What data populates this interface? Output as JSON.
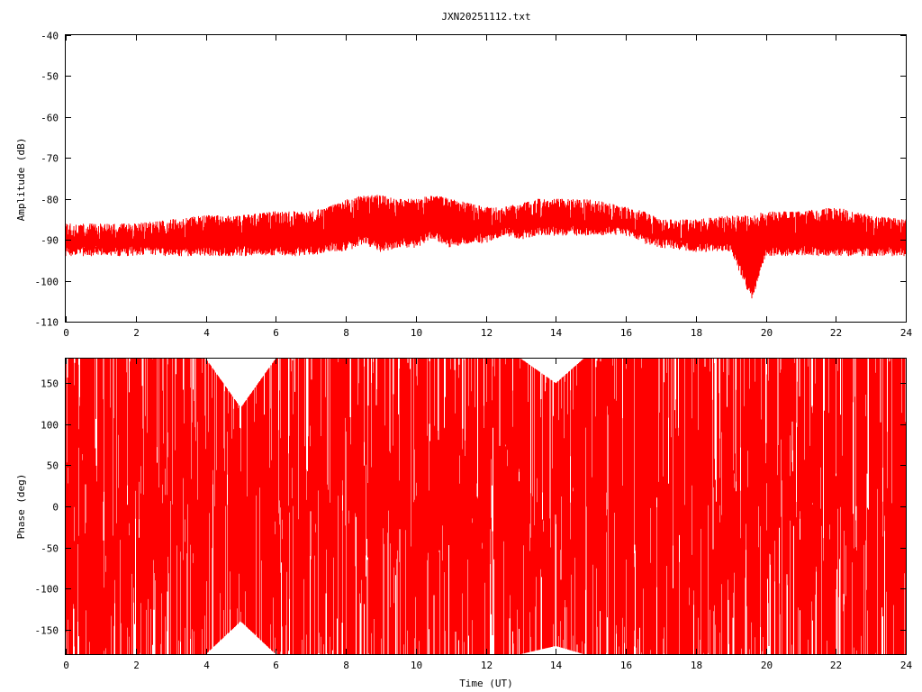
{
  "title": "JXN20251112.txt",
  "colors": {
    "trace": "#ff0000",
    "axes": "#000000",
    "background": "#ffffff"
  },
  "chart_data": [
    {
      "type": "line",
      "title": "JXN20251112.txt",
      "xlabel": "",
      "ylabel": "Amplitude (dB)",
      "xlim": [
        0,
        24
      ],
      "ylim": [
        -110,
        -40
      ],
      "x_ticks": [
        "0",
        "2",
        "4",
        "6",
        "8",
        "10",
        "12",
        "14",
        "16",
        "18",
        "20",
        "22",
        "24"
      ],
      "y_ticks": [
        "-40",
        "-50",
        "-60",
        "-70",
        "-80",
        "-90",
        "-100",
        "-110"
      ],
      "grid": false,
      "series": [
        {
          "color": "#ff0000",
          "x": [
            0,
            1,
            2,
            3,
            4,
            5,
            6,
            7,
            7.5,
            8,
            8.5,
            9,
            9.5,
            10,
            10.5,
            11,
            11.5,
            12,
            12.5,
            13,
            13.5,
            14,
            14.5,
            15,
            15.5,
            16,
            16.5,
            17,
            18,
            19,
            19.6,
            20,
            21,
            22,
            23,
            24
          ],
          "upper": [
            -86,
            -86,
            -86,
            -85,
            -84,
            -84,
            -83,
            -83,
            -82,
            -80,
            -79,
            -79,
            -80,
            -80,
            -79,
            -80,
            -81,
            -82,
            -82,
            -81,
            -80,
            -80,
            -80,
            -80,
            -81,
            -82,
            -83,
            -85,
            -85,
            -84,
            -84,
            -83,
            -83,
            -82,
            -84,
            -85
          ],
          "lower": [
            -94,
            -94,
            -94,
            -94,
            -94,
            -94,
            -94,
            -94,
            -93,
            -93,
            -91,
            -93,
            -92,
            -92,
            -90,
            -92,
            -91,
            -91,
            -89,
            -90,
            -89,
            -89,
            -89,
            -89,
            -89,
            -89,
            -91,
            -92,
            -93,
            -93,
            -105,
            -94,
            -94,
            -94,
            -94,
            -94
          ]
        }
      ]
    },
    {
      "type": "line",
      "title": "",
      "xlabel": "Time (UT)",
      "ylabel": "Phase (deg)",
      "xlim": [
        0,
        24
      ],
      "ylim": [
        -180,
        180
      ],
      "x_ticks": [
        "0",
        "2",
        "4",
        "6",
        "8",
        "10",
        "12",
        "14",
        "16",
        "18",
        "20",
        "22",
        "24"
      ],
      "y_ticks": [
        "150",
        "100",
        "50",
        "0",
        "-50",
        "-100",
        "-150"
      ],
      "grid": false,
      "series": [
        {
          "color": "#ff0000",
          "x": [
            0,
            1,
            2,
            3,
            4,
            5,
            6,
            7,
            8,
            9,
            10,
            11,
            12,
            13,
            14,
            14.8,
            15.2,
            16,
            17,
            18,
            19,
            20,
            21,
            22,
            23,
            24
          ],
          "upper": [
            180,
            180,
            180,
            180,
            180,
            120,
            180,
            180,
            180,
            180,
            180,
            180,
            180,
            180,
            150,
            180,
            180,
            180,
            180,
            180,
            180,
            180,
            180,
            180,
            180,
            180
          ],
          "lower": [
            -180,
            -180,
            -180,
            -180,
            -180,
            -140,
            -180,
            -180,
            -180,
            -180,
            -180,
            -180,
            -180,
            -180,
            -170,
            -180,
            -180,
            -180,
            -180,
            -180,
            -180,
            -180,
            -180,
            -180,
            -180,
            -180
          ]
        }
      ]
    }
  ]
}
